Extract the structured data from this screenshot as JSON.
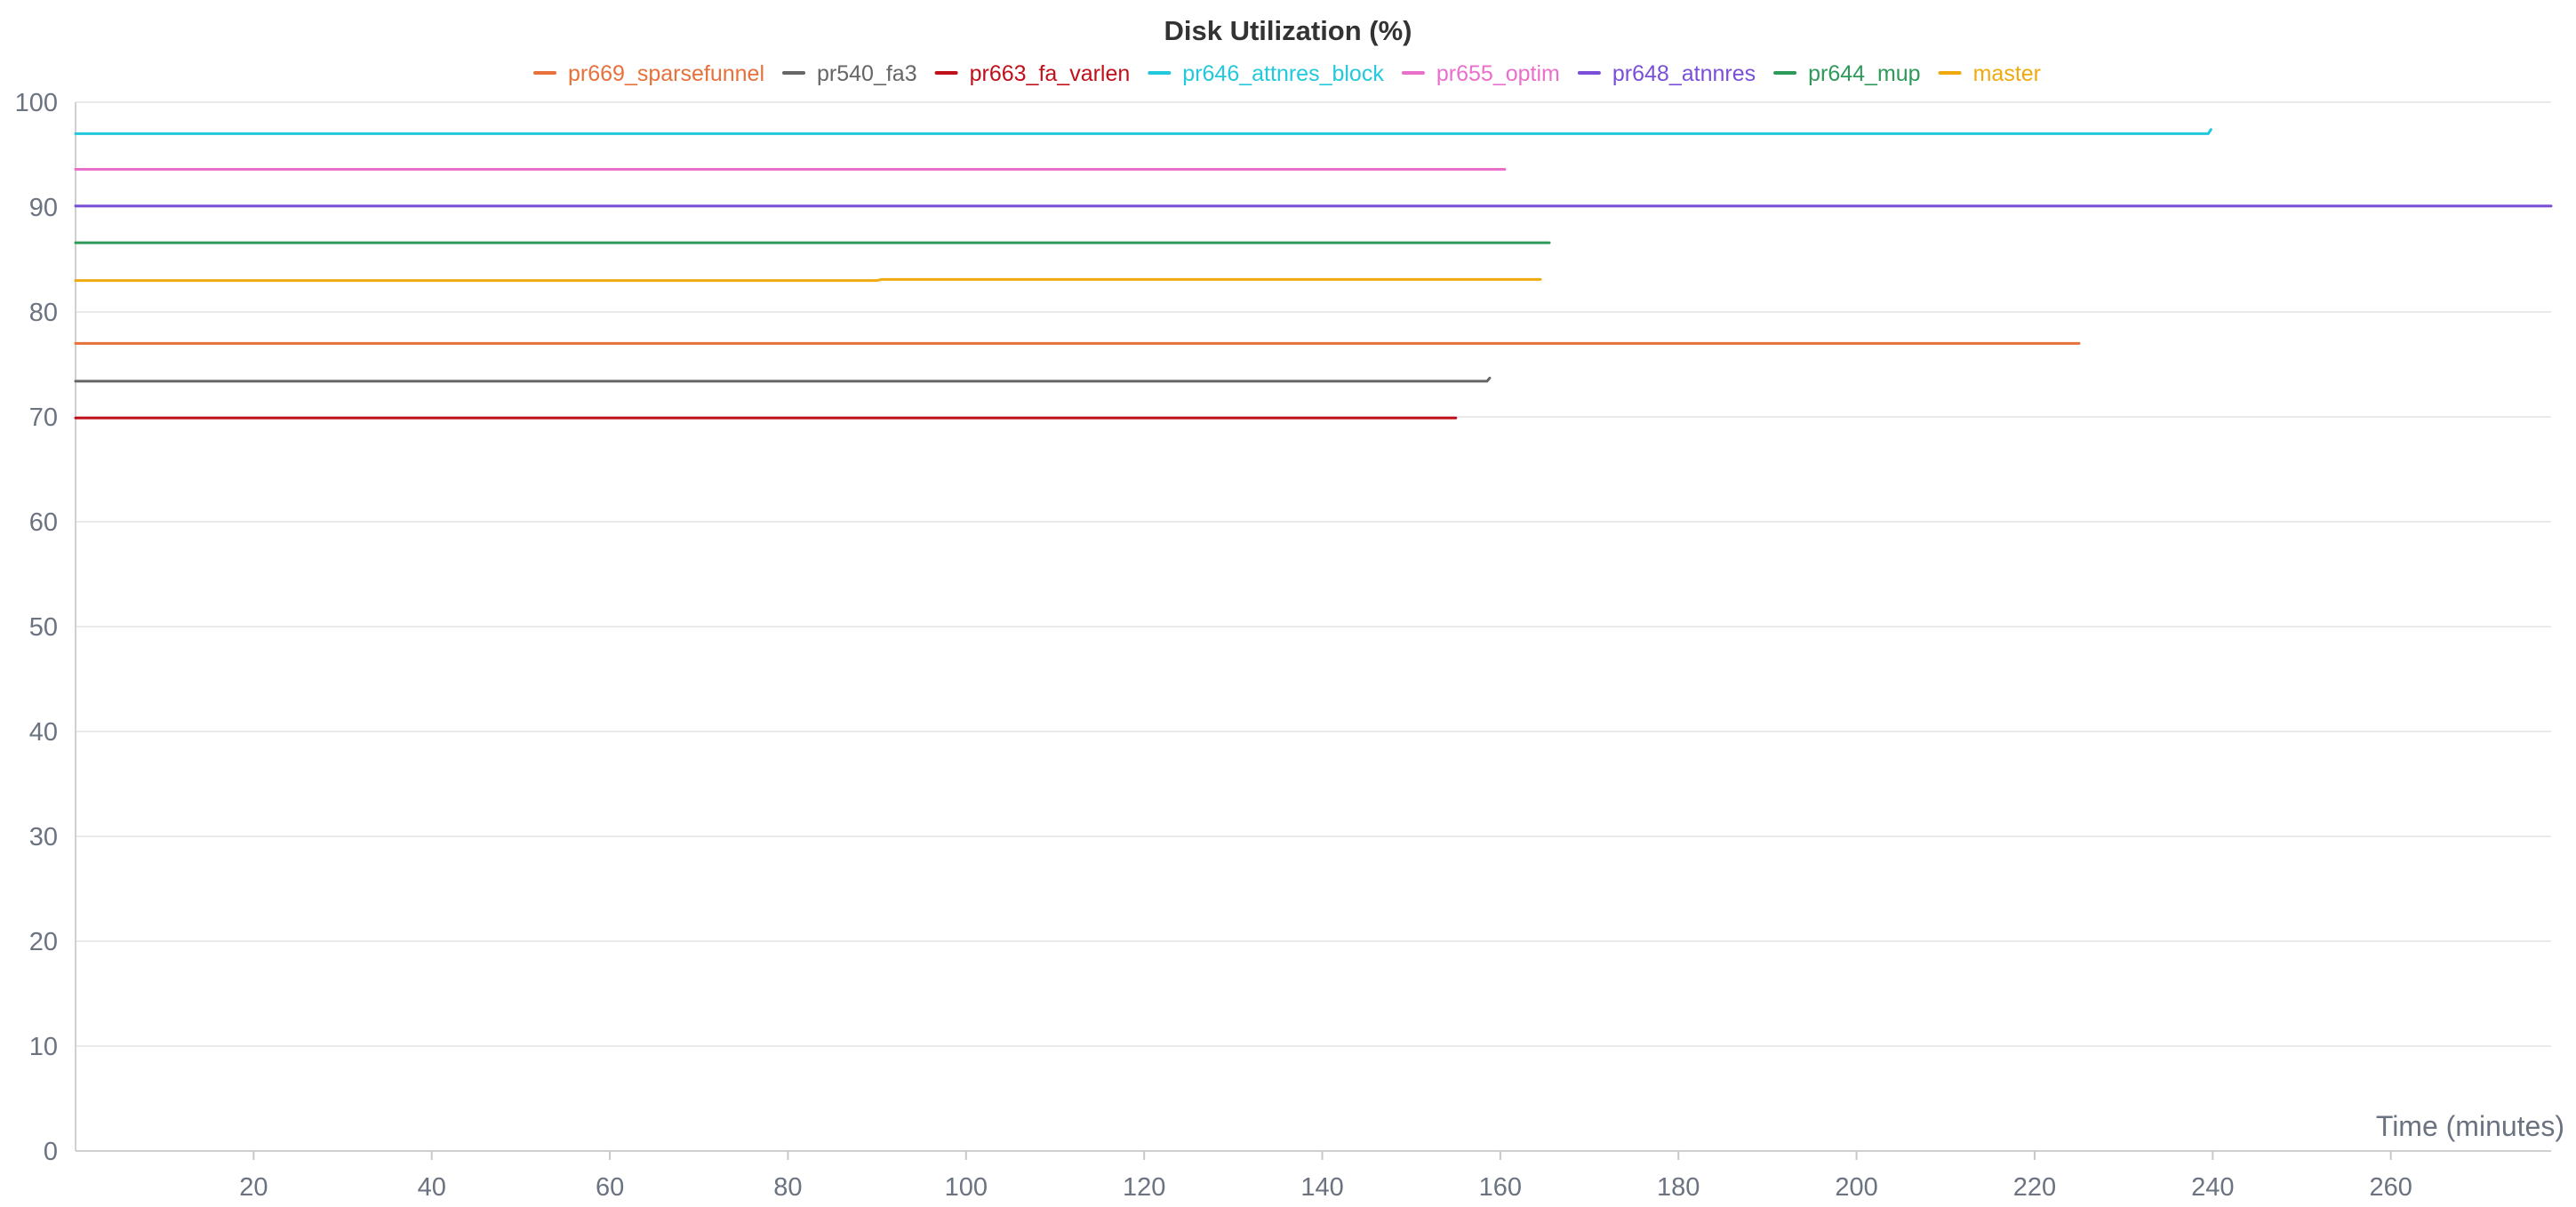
{
  "chart_data": {
    "type": "line",
    "title": "Disk Utilization (%)",
    "xlabel": "Time (minutes)",
    "ylabel": "",
    "xlim": [
      0,
      278
    ],
    "ylim": [
      0,
      100
    ],
    "x_ticks": [
      20,
      40,
      60,
      80,
      100,
      120,
      140,
      160,
      180,
      200,
      220,
      240,
      260
    ],
    "y_ticks": [
      0,
      10,
      20,
      30,
      40,
      50,
      60,
      70,
      80,
      90,
      100
    ],
    "grid": true,
    "legend_position": "top-center",
    "series": [
      {
        "name": "pr669_sparsefunnel",
        "color": "#e8703a",
        "points": [
          [
            0,
            77.0
          ],
          [
            225,
            77.0
          ]
        ]
      },
      {
        "name": "pr540_fa3",
        "color": "#666666",
        "points": [
          [
            0,
            73.4
          ],
          [
            158.5,
            73.4
          ],
          [
            158.8,
            73.7
          ]
        ]
      },
      {
        "name": "pr663_fa_varlen",
        "color": "#c0101a",
        "points": [
          [
            0,
            69.9
          ],
          [
            155,
            69.9
          ]
        ]
      },
      {
        "name": "pr646_attnres_block",
        "color": "#22c8dc",
        "points": [
          [
            0,
            97.0
          ],
          [
            239.5,
            97.0
          ],
          [
            239.8,
            97.4
          ]
        ]
      },
      {
        "name": "pr655_optim",
        "color": "#ea6fcb",
        "points": [
          [
            0,
            93.6
          ],
          [
            160.5,
            93.6
          ]
        ]
      },
      {
        "name": "pr648_atnnres",
        "color": "#7a4fd8",
        "points": [
          [
            0,
            90.1
          ],
          [
            278,
            90.1
          ]
        ]
      },
      {
        "name": "pr644_mup",
        "color": "#2e9a5a",
        "points": [
          [
            0,
            86.6
          ],
          [
            165.5,
            86.6
          ]
        ]
      },
      {
        "name": "master",
        "color": "#efaa10",
        "points": [
          [
            0,
            83.0
          ],
          [
            90,
            83.0
          ],
          [
            90.5,
            83.1
          ],
          [
            164.5,
            83.1
          ]
        ]
      }
    ]
  }
}
